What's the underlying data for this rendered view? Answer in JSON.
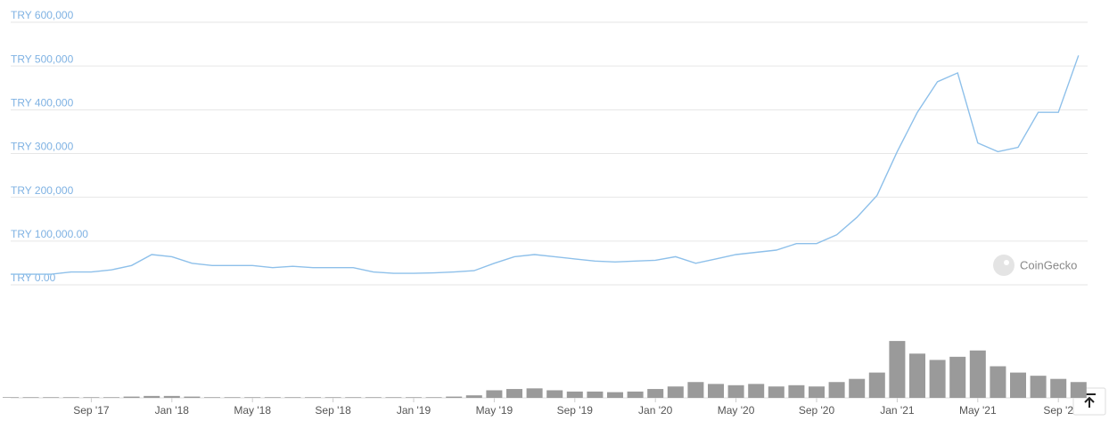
{
  "chart_data": {
    "type": "line",
    "x": [
      "2017-05",
      "2017-06",
      "2017-07",
      "2017-08",
      "2017-09",
      "2017-10",
      "2017-11",
      "2017-12",
      "2018-01",
      "2018-02",
      "2018-03",
      "2018-04",
      "2018-05",
      "2018-06",
      "2018-07",
      "2018-08",
      "2018-09",
      "2018-10",
      "2018-11",
      "2018-12",
      "2019-01",
      "2019-02",
      "2019-03",
      "2019-04",
      "2019-05",
      "2019-06",
      "2019-07",
      "2019-08",
      "2019-09",
      "2019-10",
      "2019-11",
      "2019-12",
      "2020-01",
      "2020-02",
      "2020-03",
      "2020-04",
      "2020-05",
      "2020-06",
      "2020-07",
      "2020-08",
      "2020-09",
      "2020-10",
      "2020-11",
      "2020-12",
      "2021-01",
      "2021-02",
      "2021-03",
      "2021-04",
      "2021-05",
      "2021-06",
      "2021-07",
      "2021-08",
      "2021-09",
      "2021-10"
    ],
    "series": [
      {
        "color": "#8ec0ea",
        "values": [
          10000,
          10000,
          10000,
          15000,
          15000,
          20000,
          30000,
          55000,
          50000,
          35000,
          30000,
          30000,
          30000,
          25000,
          28000,
          25000,
          25000,
          25000,
          15000,
          12000,
          12000,
          13000,
          15000,
          18000,
          35000,
          50000,
          55000,
          50000,
          45000,
          40000,
          38000,
          40000,
          42000,
          50000,
          35000,
          45000,
          55000,
          60000,
          65000,
          80000,
          80000,
          100000,
          140000,
          190000,
          290000,
          380000,
          450000,
          470000,
          310000,
          290000,
          300000,
          380000,
          380000,
          510000
        ]
      }
    ],
    "volume": [
      1,
      1,
      1,
      1,
      1,
      1,
      2,
      3,
      3,
      2,
      1,
      1,
      1,
      1,
      1,
      1,
      1,
      1,
      1,
      1,
      1,
      1,
      2,
      4,
      12,
      14,
      15,
      12,
      10,
      10,
      9,
      10,
      14,
      18,
      25,
      22,
      20,
      22,
      18,
      20,
      18,
      25,
      30,
      40,
      90,
      70,
      60,
      65,
      75,
      50,
      40,
      35,
      30,
      25
    ],
    "volume_ylim": [
      0,
      100
    ],
    "ylim": [
      0,
      600000
    ],
    "yticks": [
      {
        "value": 0,
        "label": "TRY 0.00"
      },
      {
        "value": 100000,
        "label": "TRY 100,000.00"
      },
      {
        "value": 200000,
        "label": "TRY 200,000"
      },
      {
        "value": 300000,
        "label": "TRY 300,000"
      },
      {
        "value": 400000,
        "label": "TRY 400,000"
      },
      {
        "value": 500000,
        "label": "TRY 500,000"
      },
      {
        "value": 600000,
        "label": "TRY 600,000"
      }
    ],
    "xticks": [
      {
        "value": "2017-09",
        "label": "Sep '17"
      },
      {
        "value": "2018-01",
        "label": "Jan '18"
      },
      {
        "value": "2018-05",
        "label": "May '18"
      },
      {
        "value": "2018-09",
        "label": "Sep '18"
      },
      {
        "value": "2019-01",
        "label": "Jan '19"
      },
      {
        "value": "2019-05",
        "label": "May '19"
      },
      {
        "value": "2019-09",
        "label": "Sep '19"
      },
      {
        "value": "2020-01",
        "label": "Jan '20"
      },
      {
        "value": "2020-05",
        "label": "May '20"
      },
      {
        "value": "2020-09",
        "label": "Sep '20"
      },
      {
        "value": "2021-01",
        "label": "Jan '21"
      },
      {
        "value": "2021-05",
        "label": "May '21"
      },
      {
        "value": "2021-09",
        "label": "Sep '2"
      }
    ],
    "grid": true,
    "volume_color": "#9a9a9a",
    "watermark": "CoinGecko"
  }
}
